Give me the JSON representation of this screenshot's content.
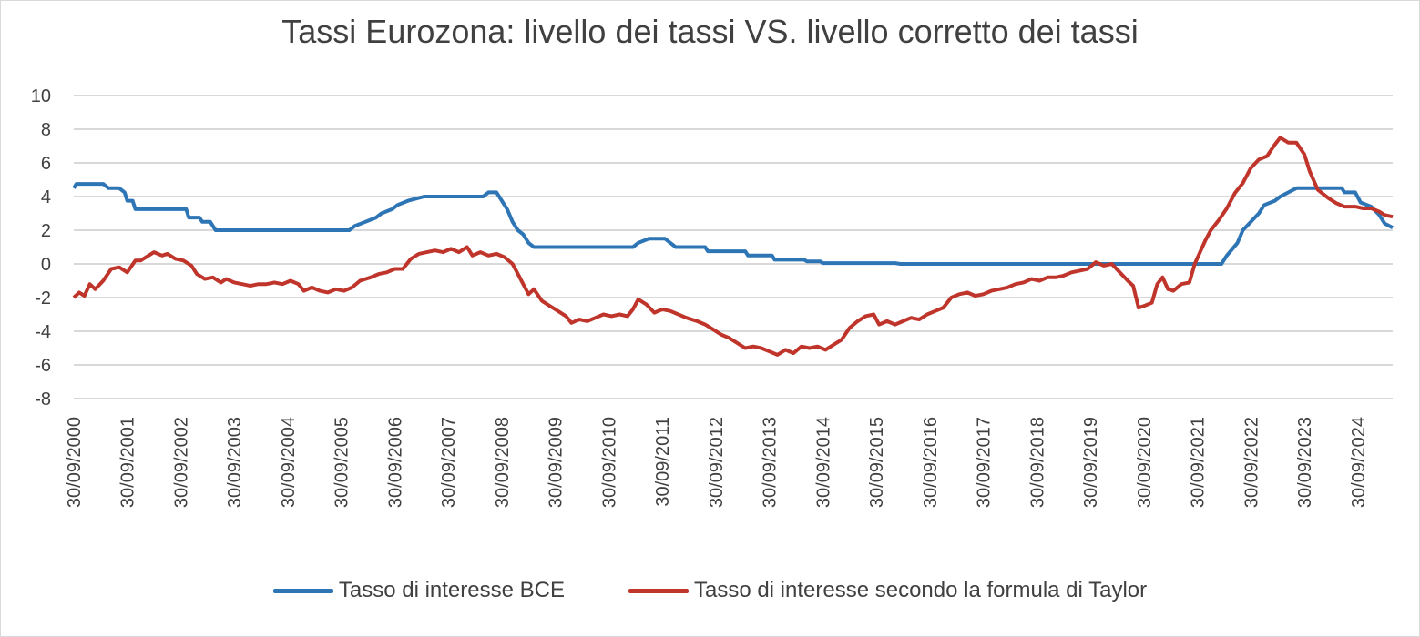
{
  "chart_data": {
    "type": "line",
    "title": "Tassi Eurozona: livello dei tassi VS. livello corretto dei tassi",
    "xlabel": "",
    "ylabel": "",
    "ylim": [
      -8,
      10
    ],
    "yticks": [
      "10",
      "8",
      "6",
      "4",
      "2",
      "0",
      "-2",
      "-4",
      "-6",
      "-8"
    ],
    "xlim": [
      2000.75,
      2025.4
    ],
    "xticks": [
      {
        "value": 2000.75,
        "label": "30/09/2000"
      },
      {
        "value": 2001.75,
        "label": "30/09/2001"
      },
      {
        "value": 2002.75,
        "label": "30/09/2002"
      },
      {
        "value": 2003.75,
        "label": "30/09/2003"
      },
      {
        "value": 2004.75,
        "label": "30/09/2004"
      },
      {
        "value": 2005.75,
        "label": "30/09/2005"
      },
      {
        "value": 2006.75,
        "label": "30/09/2006"
      },
      {
        "value": 2007.75,
        "label": "30/09/2007"
      },
      {
        "value": 2008.75,
        "label": "30/09/2008"
      },
      {
        "value": 2009.75,
        "label": "30/09/2009"
      },
      {
        "value": 2010.75,
        "label": "30/09/2010"
      },
      {
        "value": 2011.75,
        "label": "30/09/2011"
      },
      {
        "value": 2012.75,
        "label": "30/09/2012"
      },
      {
        "value": 2013.75,
        "label": "30/09/2013"
      },
      {
        "value": 2014.75,
        "label": "30/09/2014"
      },
      {
        "value": 2015.75,
        "label": "30/09/2015"
      },
      {
        "value": 2016.75,
        "label": "30/09/2016"
      },
      {
        "value": 2017.75,
        "label": "30/09/2017"
      },
      {
        "value": 2018.75,
        "label": "30/09/2018"
      },
      {
        "value": 2019.75,
        "label": "30/09/2019"
      },
      {
        "value": 2020.75,
        "label": "30/09/2020"
      },
      {
        "value": 2021.75,
        "label": "30/09/2021"
      },
      {
        "value": 2022.75,
        "label": "30/09/2022"
      },
      {
        "value": 2023.75,
        "label": "30/09/2023"
      },
      {
        "value": 2024.75,
        "label": "30/09/2024"
      }
    ],
    "grid": true,
    "legend_position": "bottom",
    "series": [
      {
        "name": "Tasso di interesse BCE",
        "color": "#2e75b6",
        "points": [
          [
            2000.75,
            4.5
          ],
          [
            2000.8,
            4.75
          ],
          [
            2001.3,
            4.75
          ],
          [
            2001.4,
            4.5
          ],
          [
            2001.6,
            4.5
          ],
          [
            2001.7,
            4.25
          ],
          [
            2001.75,
            3.75
          ],
          [
            2001.85,
            3.75
          ],
          [
            2001.9,
            3.25
          ],
          [
            2002.7,
            3.25
          ],
          [
            2002.85,
            3.25
          ],
          [
            2002.9,
            2.75
          ],
          [
            2003.1,
            2.75
          ],
          [
            2003.15,
            2.5
          ],
          [
            2003.3,
            2.5
          ],
          [
            2003.4,
            2.0
          ],
          [
            2005.9,
            2.0
          ],
          [
            2006.0,
            2.25
          ],
          [
            2006.2,
            2.5
          ],
          [
            2006.4,
            2.75
          ],
          [
            2006.5,
            3.0
          ],
          [
            2006.7,
            3.25
          ],
          [
            2006.8,
            3.5
          ],
          [
            2007.0,
            3.75
          ],
          [
            2007.3,
            4.0
          ],
          [
            2008.4,
            4.0
          ],
          [
            2008.5,
            4.25
          ],
          [
            2008.65,
            4.25
          ],
          [
            2008.75,
            3.75
          ],
          [
            2008.85,
            3.25
          ],
          [
            2008.95,
            2.5
          ],
          [
            2009.05,
            2.0
          ],
          [
            2009.15,
            1.75
          ],
          [
            2009.25,
            1.25
          ],
          [
            2009.35,
            1.0
          ],
          [
            2011.2,
            1.0
          ],
          [
            2011.3,
            1.25
          ],
          [
            2011.5,
            1.5
          ],
          [
            2011.8,
            1.5
          ],
          [
            2011.9,
            1.25
          ],
          [
            2012.0,
            1.0
          ],
          [
            2012.55,
            1.0
          ],
          [
            2012.6,
            0.75
          ],
          [
            2013.3,
            0.75
          ],
          [
            2013.35,
            0.5
          ],
          [
            2013.8,
            0.5
          ],
          [
            2013.85,
            0.25
          ],
          [
            2014.4,
            0.25
          ],
          [
            2014.45,
            0.15
          ],
          [
            2014.7,
            0.15
          ],
          [
            2014.75,
            0.05
          ],
          [
            2016.1,
            0.05
          ],
          [
            2016.2,
            0.0
          ],
          [
            2022.2,
            0.0
          ],
          [
            2022.3,
            0.5
          ],
          [
            2022.5,
            1.25
          ],
          [
            2022.6,
            2.0
          ],
          [
            2022.75,
            2.5
          ],
          [
            2022.9,
            3.0
          ],
          [
            2023.0,
            3.5
          ],
          [
            2023.2,
            3.75
          ],
          [
            2023.3,
            4.0
          ],
          [
            2023.45,
            4.25
          ],
          [
            2023.6,
            4.5
          ],
          [
            2024.45,
            4.5
          ],
          [
            2024.5,
            4.25
          ],
          [
            2024.7,
            4.25
          ],
          [
            2024.8,
            3.65
          ],
          [
            2025.0,
            3.4
          ],
          [
            2025.15,
            2.9
          ],
          [
            2025.25,
            2.4
          ],
          [
            2025.4,
            2.15
          ]
        ]
      },
      {
        "name": "Tasso di interesse secondo la formula di Taylor",
        "color": "#c0352b",
        "points": [
          [
            2000.75,
            -2.0
          ],
          [
            2000.85,
            -1.7
          ],
          [
            2000.95,
            -1.9
          ],
          [
            2001.05,
            -1.2
          ],
          [
            2001.15,
            -1.5
          ],
          [
            2001.3,
            -1.0
          ],
          [
            2001.45,
            -0.3
          ],
          [
            2001.6,
            -0.2
          ],
          [
            2001.75,
            -0.5
          ],
          [
            2001.9,
            0.2
          ],
          [
            2002.0,
            0.2
          ],
          [
            2002.1,
            0.4
          ],
          [
            2002.25,
            0.7
          ],
          [
            2002.4,
            0.5
          ],
          [
            2002.5,
            0.6
          ],
          [
            2002.65,
            0.3
          ],
          [
            2002.8,
            0.2
          ],
          [
            2002.95,
            -0.1
          ],
          [
            2003.05,
            -0.6
          ],
          [
            2003.2,
            -0.9
          ],
          [
            2003.35,
            -0.8
          ],
          [
            2003.5,
            -1.1
          ],
          [
            2003.6,
            -0.9
          ],
          [
            2003.75,
            -1.1
          ],
          [
            2003.9,
            -1.2
          ],
          [
            2004.05,
            -1.3
          ],
          [
            2004.2,
            -1.2
          ],
          [
            2004.35,
            -1.2
          ],
          [
            2004.5,
            -1.1
          ],
          [
            2004.65,
            -1.2
          ],
          [
            2004.8,
            -1.0
          ],
          [
            2004.95,
            -1.2
          ],
          [
            2005.05,
            -1.6
          ],
          [
            2005.2,
            -1.4
          ],
          [
            2005.35,
            -1.6
          ],
          [
            2005.5,
            -1.7
          ],
          [
            2005.65,
            -1.5
          ],
          [
            2005.8,
            -1.6
          ],
          [
            2005.95,
            -1.4
          ],
          [
            2006.1,
            -1.0
          ],
          [
            2006.3,
            -0.8
          ],
          [
            2006.45,
            -0.6
          ],
          [
            2006.6,
            -0.5
          ],
          [
            2006.75,
            -0.3
          ],
          [
            2006.9,
            -0.3
          ],
          [
            2007.05,
            0.3
          ],
          [
            2007.2,
            0.6
          ],
          [
            2007.35,
            0.7
          ],
          [
            2007.5,
            0.8
          ],
          [
            2007.65,
            0.7
          ],
          [
            2007.8,
            0.9
          ],
          [
            2007.95,
            0.7
          ],
          [
            2008.1,
            1.0
          ],
          [
            2008.2,
            0.5
          ],
          [
            2008.35,
            0.7
          ],
          [
            2008.5,
            0.5
          ],
          [
            2008.65,
            0.6
          ],
          [
            2008.8,
            0.4
          ],
          [
            2008.95,
            0.0
          ],
          [
            2009.05,
            -0.6
          ],
          [
            2009.15,
            -1.2
          ],
          [
            2009.25,
            -1.8
          ],
          [
            2009.35,
            -1.5
          ],
          [
            2009.5,
            -2.2
          ],
          [
            2009.65,
            -2.5
          ],
          [
            2009.8,
            -2.8
          ],
          [
            2009.95,
            -3.1
          ],
          [
            2010.05,
            -3.5
          ],
          [
            2010.2,
            -3.3
          ],
          [
            2010.35,
            -3.4
          ],
          [
            2010.5,
            -3.2
          ],
          [
            2010.65,
            -3.0
          ],
          [
            2010.8,
            -3.1
          ],
          [
            2010.95,
            -3.0
          ],
          [
            2011.1,
            -3.1
          ],
          [
            2011.2,
            -2.7
          ],
          [
            2011.3,
            -2.1
          ],
          [
            2011.45,
            -2.4
          ],
          [
            2011.6,
            -2.9
          ],
          [
            2011.75,
            -2.7
          ],
          [
            2011.9,
            -2.8
          ],
          [
            2012.05,
            -3.0
          ],
          [
            2012.2,
            -3.2
          ],
          [
            2012.4,
            -3.4
          ],
          [
            2012.55,
            -3.6
          ],
          [
            2012.7,
            -3.9
          ],
          [
            2012.85,
            -4.2
          ],
          [
            2013.0,
            -4.4
          ],
          [
            2013.15,
            -4.7
          ],
          [
            2013.3,
            -5.0
          ],
          [
            2013.45,
            -4.9
          ],
          [
            2013.6,
            -5.0
          ],
          [
            2013.75,
            -5.2
          ],
          [
            2013.9,
            -5.4
          ],
          [
            2014.05,
            -5.1
          ],
          [
            2014.2,
            -5.3
          ],
          [
            2014.35,
            -4.9
          ],
          [
            2014.5,
            -5.0
          ],
          [
            2014.65,
            -4.9
          ],
          [
            2014.8,
            -5.1
          ],
          [
            2014.95,
            -4.8
          ],
          [
            2015.1,
            -4.5
          ],
          [
            2015.25,
            -3.8
          ],
          [
            2015.4,
            -3.4
          ],
          [
            2015.55,
            -3.1
          ],
          [
            2015.7,
            -3.0
          ],
          [
            2015.8,
            -3.6
          ],
          [
            2015.95,
            -3.4
          ],
          [
            2016.1,
            -3.6
          ],
          [
            2016.25,
            -3.4
          ],
          [
            2016.4,
            -3.2
          ],
          [
            2016.55,
            -3.3
          ],
          [
            2016.7,
            -3.0
          ],
          [
            2016.85,
            -2.8
          ],
          [
            2017.0,
            -2.6
          ],
          [
            2017.15,
            -2.0
          ],
          [
            2017.3,
            -1.8
          ],
          [
            2017.45,
            -1.7
          ],
          [
            2017.6,
            -1.9
          ],
          [
            2017.75,
            -1.8
          ],
          [
            2017.9,
            -1.6
          ],
          [
            2018.05,
            -1.5
          ],
          [
            2018.2,
            -1.4
          ],
          [
            2018.35,
            -1.2
          ],
          [
            2018.5,
            -1.1
          ],
          [
            2018.65,
            -0.9
          ],
          [
            2018.8,
            -1.0
          ],
          [
            2018.95,
            -0.8
          ],
          [
            2019.1,
            -0.8
          ],
          [
            2019.25,
            -0.7
          ],
          [
            2019.4,
            -0.5
          ],
          [
            2019.55,
            -0.4
          ],
          [
            2019.7,
            -0.3
          ],
          [
            2019.85,
            0.1
          ],
          [
            2020.0,
            -0.1
          ],
          [
            2020.15,
            0.0
          ],
          [
            2020.3,
            -0.5
          ],
          [
            2020.45,
            -1.0
          ],
          [
            2020.55,
            -1.3
          ],
          [
            2020.65,
            -2.6
          ],
          [
            2020.75,
            -2.5
          ],
          [
            2020.9,
            -2.3
          ],
          [
            2021.0,
            -1.2
          ],
          [
            2021.1,
            -0.8
          ],
          [
            2021.2,
            -1.5
          ],
          [
            2021.3,
            -1.6
          ],
          [
            2021.45,
            -1.2
          ],
          [
            2021.6,
            -1.1
          ],
          [
            2021.7,
            0.0
          ],
          [
            2021.8,
            0.7
          ],
          [
            2021.9,
            1.4
          ],
          [
            2022.0,
            2.0
          ],
          [
            2022.15,
            2.6
          ],
          [
            2022.3,
            3.3
          ],
          [
            2022.45,
            4.2
          ],
          [
            2022.6,
            4.8
          ],
          [
            2022.75,
            5.7
          ],
          [
            2022.9,
            6.2
          ],
          [
            2023.05,
            6.4
          ],
          [
            2023.2,
            7.1
          ],
          [
            2023.3,
            7.5
          ],
          [
            2023.45,
            7.2
          ],
          [
            2023.6,
            7.2
          ],
          [
            2023.75,
            6.5
          ],
          [
            2023.85,
            5.5
          ],
          [
            2024.0,
            4.4
          ],
          [
            2024.2,
            3.9
          ],
          [
            2024.35,
            3.6
          ],
          [
            2024.5,
            3.4
          ],
          [
            2024.7,
            3.4
          ],
          [
            2024.85,
            3.3
          ],
          [
            2025.0,
            3.3
          ],
          [
            2025.15,
            3.1
          ],
          [
            2025.25,
            2.9
          ],
          [
            2025.4,
            2.8
          ]
        ]
      }
    ]
  }
}
